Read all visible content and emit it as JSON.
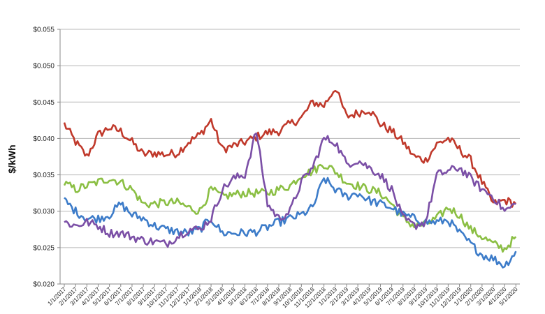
{
  "chart_data": {
    "type": "line",
    "title": "",
    "xlabel": "",
    "ylabel": "$/kWh",
    "ylim": [
      0.02,
      0.055
    ],
    "grid": "horizontal",
    "legend": "none",
    "ytick_labels": [
      "$0.020",
      "$0.025",
      "$0.030",
      "$0.035",
      "$0.040",
      "$0.045",
      "$0.050",
      "$0.055"
    ],
    "ytick_values": [
      0.02,
      0.025,
      0.03,
      0.035,
      0.04,
      0.045,
      0.05,
      0.055
    ],
    "categories": [
      "1/1/2017",
      "2/1/2017",
      "3/1/2017",
      "4/1/2017",
      "5/1/2017",
      "6/1/2017",
      "7/1/2017",
      "8/1/2017",
      "9/1/2017",
      "10/1/2017",
      "11/1/2017",
      "12/1/2017",
      "1/1/2018",
      "2/1/2018",
      "3/1/2018",
      "4/1/2018",
      "5/1/2018",
      "6/1/2018",
      "7/1/2018",
      "8/1/2018",
      "9/1/2018",
      "10/1/2018",
      "11/1/2018",
      "12/1/2018",
      "1/1/2019",
      "2/1/2019",
      "3/1/2019",
      "4/1/2019",
      "5/1/2019",
      "6/1/2019",
      "7/1/2019",
      "8/1/2019",
      "9/1/2019",
      "10/1/2019",
      "11/1/2019",
      "12/1/2019",
      "1/1/2020",
      "2/1/2020",
      "3/1/2020",
      "4/1/2020",
      "5/1/2020"
    ],
    "series": [
      {
        "color": "#c0392b",
        "values": [
          0.042,
          0.0395,
          0.0375,
          0.0405,
          0.0415,
          0.041,
          0.0395,
          0.0378,
          0.038,
          0.0378,
          0.038,
          0.0395,
          0.0405,
          0.0425,
          0.0385,
          0.039,
          0.0395,
          0.0402,
          0.0408,
          0.041,
          0.042,
          0.0428,
          0.045,
          0.0445,
          0.047,
          0.043,
          0.0435,
          0.044,
          0.042,
          0.041,
          0.0395,
          0.0375,
          0.037,
          0.0392,
          0.04,
          0.0385,
          0.037,
          0.034,
          0.031,
          0.0315,
          0.031
        ]
      },
      {
        "color": "#8bbf44",
        "values": [
          0.0338,
          0.033,
          0.0335,
          0.034,
          0.0345,
          0.034,
          0.033,
          0.031,
          0.031,
          0.0312,
          0.0312,
          0.0305,
          0.03,
          0.033,
          0.032,
          0.0323,
          0.0325,
          0.0325,
          0.0325,
          0.033,
          0.0335,
          0.035,
          0.0355,
          0.0365,
          0.0355,
          0.034,
          0.0335,
          0.033,
          0.0325,
          0.031,
          0.029,
          0.028,
          0.0282,
          0.029,
          0.0305,
          0.0295,
          0.0275,
          0.0265,
          0.0255,
          0.0248,
          0.0265
        ]
      },
      {
        "color": "#3d7cc9",
        "values": [
          0.0315,
          0.03,
          0.029,
          0.029,
          0.0295,
          0.031,
          0.0295,
          0.029,
          0.028,
          0.0275,
          0.0272,
          0.027,
          0.0275,
          0.029,
          0.027,
          0.027,
          0.027,
          0.0272,
          0.0278,
          0.0285,
          0.029,
          0.0295,
          0.0305,
          0.0345,
          0.033,
          0.032,
          0.0325,
          0.0315,
          0.031,
          0.0305,
          0.0295,
          0.029,
          0.0285,
          0.0285,
          0.0288,
          0.027,
          0.0255,
          0.024,
          0.0235,
          0.0225,
          0.0245
        ]
      },
      {
        "color": "#7b4fa6",
        "values": [
          0.0285,
          0.028,
          0.0285,
          0.028,
          0.027,
          0.027,
          0.0265,
          0.026,
          0.0258,
          0.0255,
          0.0265,
          0.0275,
          0.0275,
          0.029,
          0.033,
          0.0345,
          0.035,
          0.041,
          0.031,
          0.029,
          0.03,
          0.034,
          0.036,
          0.04,
          0.0395,
          0.0365,
          0.037,
          0.036,
          0.035,
          0.033,
          0.029,
          0.028,
          0.0285,
          0.035,
          0.0355,
          0.036,
          0.0345,
          0.033,
          0.032,
          0.03,
          0.031
        ]
      }
    ]
  }
}
